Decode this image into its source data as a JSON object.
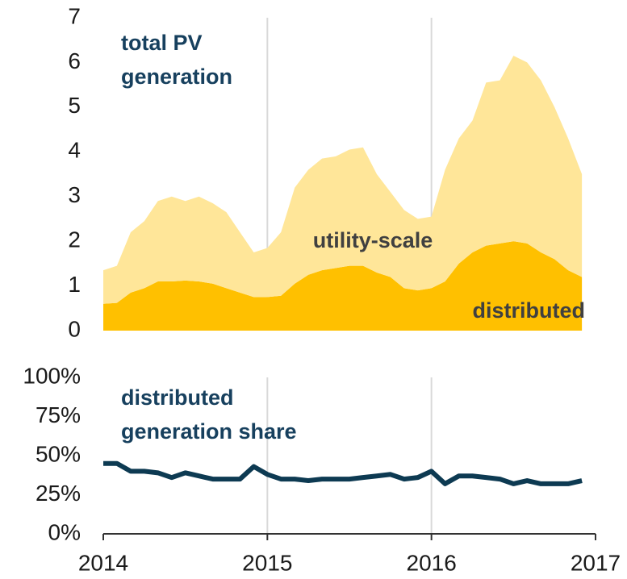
{
  "chart_data": [
    {
      "type": "area",
      "stacked": true,
      "title": [
        "total PV",
        "generation"
      ],
      "x": [
        2014,
        2014.083,
        2014.167,
        2014.25,
        2014.333,
        2014.417,
        2014.5,
        2014.583,
        2014.667,
        2014.75,
        2014.833,
        2014.917,
        2015,
        2015.083,
        2015.167,
        2015.25,
        2015.333,
        2015.417,
        2015.5,
        2015.583,
        2015.667,
        2015.75,
        2015.833,
        2015.917,
        2016,
        2016.083,
        2016.167,
        2016.25,
        2016.333,
        2016.417,
        2016.5,
        2016.583,
        2016.667,
        2016.75,
        2016.833,
        2016.917
      ],
      "series": [
        {
          "name": "distributed",
          "color": "#ffc000",
          "values": [
            0.6,
            0.62,
            0.85,
            0.95,
            1.1,
            1.1,
            1.12,
            1.1,
            1.05,
            0.95,
            0.85,
            0.75,
            0.75,
            0.78,
            1.05,
            1.25,
            1.35,
            1.4,
            1.45,
            1.45,
            1.3,
            1.2,
            0.95,
            0.9,
            0.95,
            1.1,
            1.5,
            1.75,
            1.9,
            1.95,
            2.0,
            1.95,
            1.75,
            1.6,
            1.35,
            1.2
          ]
        },
        {
          "name": "utility-scale",
          "color": "#ffe699",
          "values": [
            0.75,
            0.83,
            1.35,
            1.5,
            1.8,
            1.9,
            1.78,
            1.9,
            1.8,
            1.7,
            1.35,
            1.0,
            1.1,
            1.42,
            2.15,
            2.35,
            2.5,
            2.5,
            2.6,
            2.65,
            2.2,
            1.9,
            1.75,
            1.6,
            1.6,
            2.5,
            2.8,
            2.95,
            3.65,
            3.65,
            4.15,
            4.05,
            3.85,
            3.4,
            2.95,
            2.3
          ]
        }
      ],
      "xlim": [
        2014,
        2017
      ],
      "xticks": [
        2014,
        2015,
        2016,
        2017
      ],
      "ylim": [
        0,
        7
      ],
      "yticks": [
        0,
        1,
        2,
        3,
        4,
        5,
        6,
        7
      ],
      "grid": true
    },
    {
      "type": "line",
      "title": [
        "distributed",
        "generation share"
      ],
      "x": [
        2014,
        2014.083,
        2014.167,
        2014.25,
        2014.333,
        2014.417,
        2014.5,
        2014.583,
        2014.667,
        2014.75,
        2014.833,
        2014.917,
        2015,
        2015.083,
        2015.167,
        2015.25,
        2015.333,
        2015.417,
        2015.5,
        2015.583,
        2015.667,
        2015.75,
        2015.833,
        2015.917,
        2016,
        2016.083,
        2016.167,
        2016.25,
        2016.333,
        2016.417,
        2016.5,
        2016.583,
        2016.667,
        2016.75,
        2016.833,
        2016.917
      ],
      "series": [
        {
          "name": "distributed generation share",
          "color": "#0d3a52",
          "values": [
            45,
            45,
            40,
            40,
            39,
            36,
            39,
            37,
            35,
            35,
            35,
            43,
            38,
            35,
            35,
            34,
            35,
            35,
            35,
            36,
            37,
            38,
            35,
            36,
            40,
            32,
            37,
            37,
            36,
            35,
            32,
            34,
            32,
            32,
            32,
            34
          ]
        }
      ],
      "xlim": [
        2014,
        2017
      ],
      "xticks": [
        2014,
        2015,
        2016,
        2017
      ],
      "ylim": [
        0,
        100
      ],
      "yticks": [
        {
          "value": 0,
          "label": "0%"
        },
        {
          "value": 25,
          "label": "25%"
        },
        {
          "value": 50,
          "label": "50%"
        },
        {
          "value": 75,
          "label": "75%"
        },
        {
          "value": 100,
          "label": "100%"
        }
      ],
      "grid": true
    }
  ]
}
